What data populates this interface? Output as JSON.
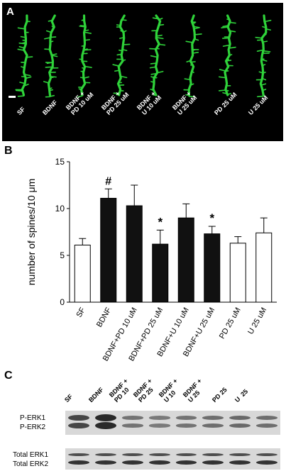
{
  "panelA": {
    "letter": "A",
    "labels": [
      "SF",
      "BDNF",
      "BDNF +\nPD 10 uM",
      "BDNF +\nPD 25 uM",
      "BDNF +\nU 10 uM",
      "BDNF +\nU 25 uM",
      "PD 25 uM",
      "U 25 uM"
    ],
    "dendrite_color": "#2fd33a",
    "background": "#000000"
  },
  "chart_data": {
    "type": "bar",
    "panel_letter": "B",
    "categories": [
      "SF",
      "BDNF",
      "BDNF+PD 10 uM",
      "BDNF+PD 25 uM",
      "BDNF+U 10 uM",
      "BDNF+U 25 uM",
      "PD 25 uM",
      "U 25 uM"
    ],
    "values": [
      6.1,
      11.1,
      10.3,
      6.2,
      9.0,
      7.3,
      6.3,
      7.4
    ],
    "errors": [
      0.7,
      1.0,
      2.2,
      1.5,
      1.5,
      0.8,
      0.7,
      1.6
    ],
    "fill": [
      "white",
      "black",
      "black",
      "black",
      "black",
      "black",
      "white",
      "white"
    ],
    "annotations": [
      "",
      "#",
      "",
      "*",
      "",
      "*",
      "",
      ""
    ],
    "ylabel": "number of spines/10 μm",
    "ylim": [
      0,
      15
    ],
    "yticks": [
      0,
      5,
      10,
      15
    ]
  },
  "panelC": {
    "letter": "C",
    "lanes": [
      "SF",
      "BDNF",
      "BDNF +\nPD 10",
      "BDNF +\nPD 25",
      "BDNF +\nU 10",
      "BDNF +\nU 25",
      "PD 25",
      "U  25"
    ],
    "row1_labels": [
      "P-ERK1",
      "P-ERK2"
    ],
    "row2_labels": [
      "Total ERK1",
      "Total ERK2"
    ],
    "perk_intensity": [
      0.75,
      1.0,
      0.35,
      0.3,
      0.35,
      0.4,
      0.45,
      0.4
    ]
  }
}
